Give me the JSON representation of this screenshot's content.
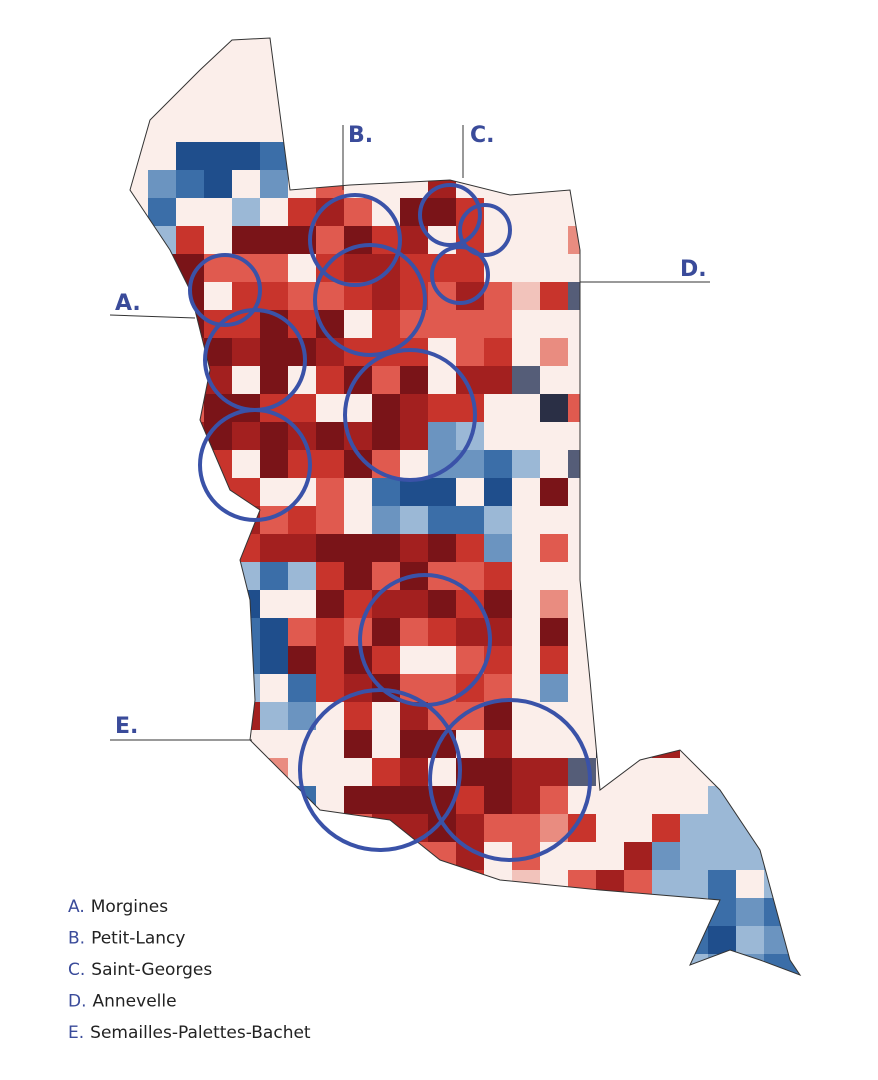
{
  "markers": [
    {
      "letter": "A.",
      "name": "Morgines"
    },
    {
      "letter": "B.",
      "name": "Petit-Lancy"
    },
    {
      "letter": "C.",
      "name": "Saint-Georges"
    },
    {
      "letter": "D.",
      "name": "Annevelle"
    },
    {
      "letter": "E.",
      "name": "Semailles-Palettes-Bachet"
    }
  ]
}
